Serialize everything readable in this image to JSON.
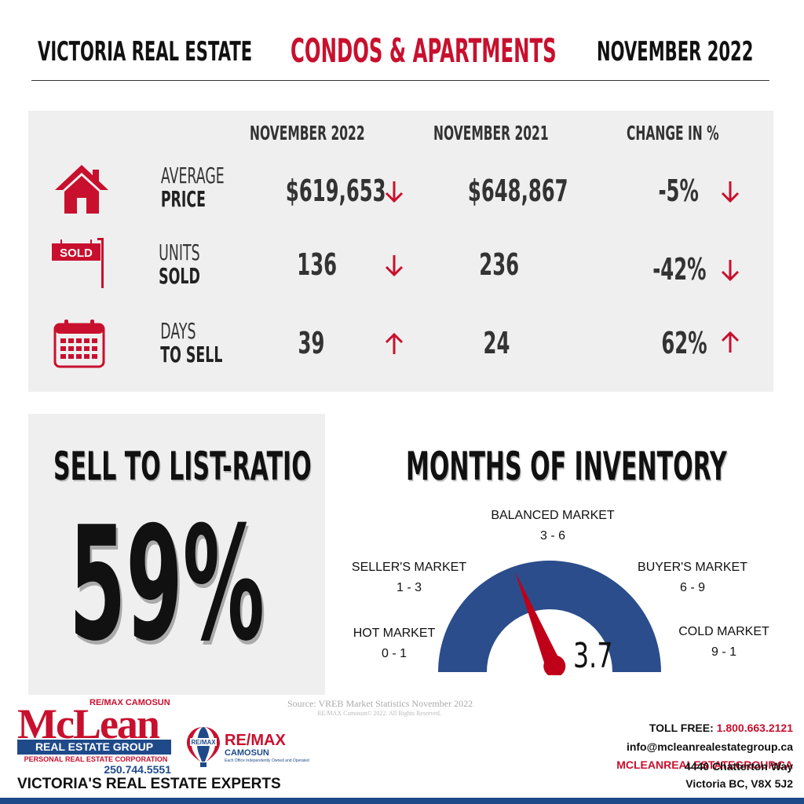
{
  "header": {
    "left": "VICTORIA REAL ESTATE",
    "middle": "CONDOS & APARTMENTS",
    "right": "NOVEMBER 2022"
  },
  "stats": {
    "columns": [
      "NOVEMBER 2022",
      "NOVEMBER 2021",
      "CHANGE IN %"
    ],
    "rows": [
      {
        "icon": "house-icon",
        "label_top": "AVERAGE",
        "label_bottom": "PRICE",
        "current": "$619,653",
        "current_trend": "down",
        "previous": "$648,867",
        "change": "-5%",
        "change_trend": "down"
      },
      {
        "icon": "sold-sign-icon",
        "sign_text": "SOLD",
        "label_top": "UNITS",
        "label_bottom": "SOLD",
        "current": "136",
        "current_trend": "down",
        "previous": "236",
        "change": "-42%",
        "change_trend": "down"
      },
      {
        "icon": "calendar-icon",
        "label_top": "DAYS",
        "label_bottom": "TO SELL",
        "current": "39",
        "current_trend": "up",
        "previous": "24",
        "change": "62%",
        "change_trend": "up"
      }
    ]
  },
  "ratio": {
    "title": "SELL TO LIST-RATIO",
    "value": "59%"
  },
  "inventory": {
    "title": "MONTHS OF INVENTORY",
    "value": "3.7",
    "value_number": 3.7,
    "markets": [
      {
        "name": "HOT MARKET",
        "range": "0 - 1"
      },
      {
        "name": "SELLER'S MARKET",
        "range": "1 - 3"
      },
      {
        "name": "BALANCED MARKET",
        "range": "3 - 6"
      },
      {
        "name": "BUYER'S MARKET",
        "range": "6 - 9"
      },
      {
        "name": "COLD MARKET",
        "range": "9 - 1"
      }
    ]
  },
  "footer": {
    "source": "Source: VREB Market Statistics November 2022",
    "copyright": "RE/MAX Camosun© 2022. All Rights Reserved.",
    "brand_small": "RE/MAX CAMOSUN",
    "brand_main": "McLean",
    "brand_group": "REAL ESTATE GROUP",
    "brand_corp": "PERSONAL REAL ESTATE CORPORATION",
    "brand_phone": "250.744.5551",
    "tagline": "VICTORIA'S REAL ESTATE EXPERTS",
    "remax_word": "RE/MAX",
    "remax_balloon_text": "RE/MAX",
    "remax_office": "CAMOSUN",
    "remax_note": "Each Office Independently Owned and Operated",
    "toll_label": "TOLL FREE:",
    "toll_number": "1.800.663.2121",
    "email": "info@mcleanrealestategroup.ca",
    "website": "MCLEANREALESTATEGROUP.CA",
    "address_line1": "4440 Chatterton Way",
    "address_line2": "Victoria BC, V8X 5J2"
  },
  "colors": {
    "accent_red": "#c8102e",
    "brand_blue": "#1f4a8a",
    "gauge_blue": "#2b4d8c",
    "panel_gray": "#efefef"
  }
}
